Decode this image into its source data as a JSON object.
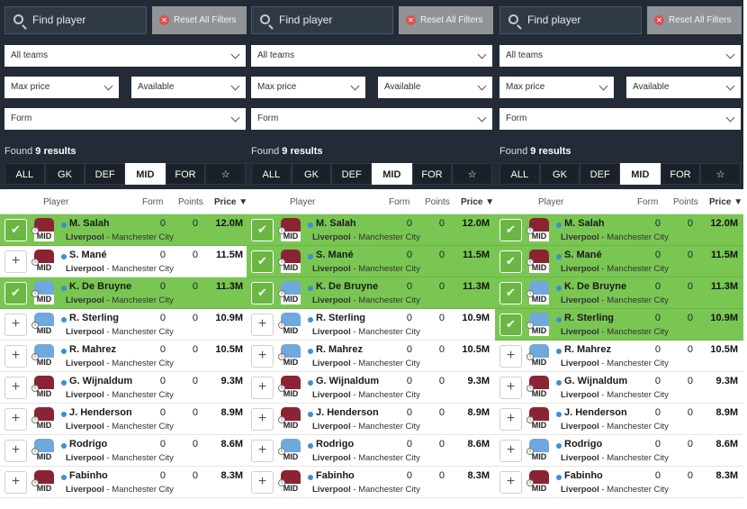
{
  "search_placeholder": "Find player",
  "reset_label": "Reset All Filters",
  "teams_label": "All teams",
  "price_label": "Max price",
  "avail_label": "Available",
  "form_label": "Form",
  "found_prefix": "Found",
  "found_count": "9 results",
  "tabs": [
    "ALL",
    "GK",
    "DEF",
    "MID",
    "FOR",
    "☆"
  ],
  "active_tab": "MID",
  "columns": {
    "player": "Player",
    "form": "Form",
    "points": "Points",
    "price": "Price ▼"
  },
  "colors": {
    "liverpool": "#8a2332",
    "city": "#6fa8dc",
    "selected": "#7ac653"
  },
  "players": [
    {
      "name": "M. Salah",
      "home": "Liverpool",
      "sep": " - ",
      "away": "Manchester City",
      "kit": "liverpool",
      "pos": "MID",
      "form": "0",
      "points": "0",
      "price": "12.0M"
    },
    {
      "name": "S. Mané",
      "home": "Liverpool",
      "sep": " - ",
      "away": "Manchester City",
      "kit": "liverpool",
      "pos": "MID",
      "form": "0",
      "points": "0",
      "price": "11.5M"
    },
    {
      "name": "K. De Bruyne",
      "home": "Liverpool",
      "sep": " - ",
      "away": "Manchester City",
      "kit": "city",
      "pos": "MID",
      "form": "0",
      "points": "0",
      "price": "11.3M"
    },
    {
      "name": "R. Sterling",
      "home": "Liverpool",
      "sep": " - ",
      "away": "Manchester City",
      "kit": "city",
      "pos": "MID",
      "form": "0",
      "points": "0",
      "price": "10.9M"
    },
    {
      "name": "R. Mahrez",
      "home": "Liverpool",
      "sep": " - ",
      "away": "Manchester City",
      "kit": "city",
      "pos": "MID",
      "form": "0",
      "points": "0",
      "price": "10.5M"
    },
    {
      "name": "G. Wijnaldum",
      "home": "Liverpool",
      "sep": " - ",
      "away": "Manchester City",
      "kit": "liverpool",
      "pos": "MID",
      "form": "0",
      "points": "0",
      "price": "9.3M"
    },
    {
      "name": "J. Henderson",
      "home": "Liverpool",
      "sep": " - ",
      "away": "Manchester City",
      "kit": "liverpool",
      "pos": "MID",
      "form": "0",
      "points": "0",
      "price": "8.9M"
    },
    {
      "name": "Rodrigo",
      "home": "Liverpool",
      "sep": " - ",
      "away": "Manchester City",
      "kit": "city",
      "pos": "MID",
      "form": "0",
      "points": "0",
      "price": "8.6M"
    },
    {
      "name": "Fabinho",
      "home": "Liverpool",
      "sep": " - ",
      "away": "Manchester City",
      "kit": "liverpool",
      "pos": "MID",
      "form": "0",
      "points": "0",
      "price": "8.3M"
    }
  ],
  "panels": [
    {
      "selected": [
        0,
        2
      ]
    },
    {
      "selected": [
        0,
        1,
        2
      ]
    },
    {
      "selected": [
        0,
        1,
        2,
        3
      ]
    }
  ]
}
